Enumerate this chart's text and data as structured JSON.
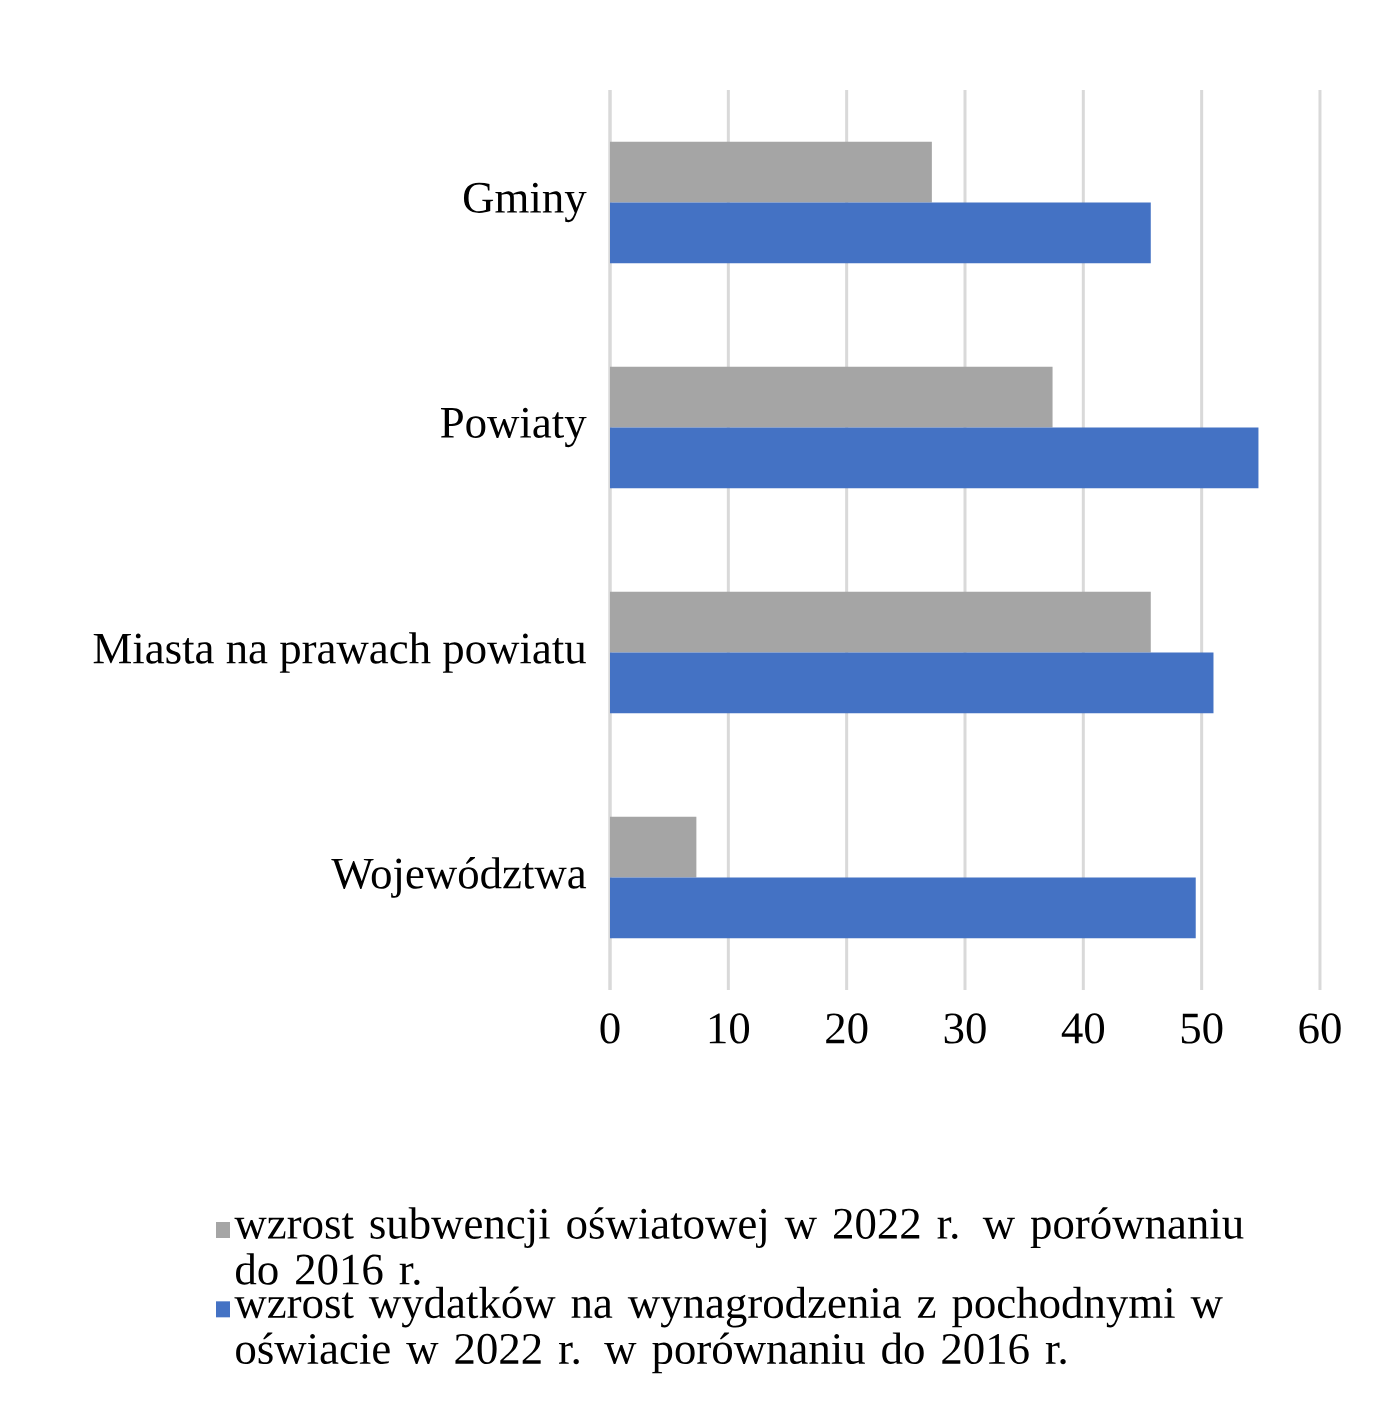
{
  "chart_data": {
    "type": "bar",
    "orientation": "horizontal",
    "categories": [
      "Gminy",
      "Powiaty",
      "Miasta na prawach powiatu",
      "Województwa"
    ],
    "series": [
      {
        "name": "wzrost subwencji oświatowej w 2022 r. w porównaniu do 2016 r.",
        "color": "#a5a5a5",
        "values": [
          27.2,
          37.4,
          45.7,
          7.3
        ]
      },
      {
        "name": "wzrost wydatków na wynagrodzenia z pochodnymi w oświacie w 2022 r. w porównaniu do 2016 r.",
        "color": "#4472c4",
        "values": [
          45.7,
          54.8,
          51.0,
          49.5
        ]
      }
    ],
    "xlim": [
      0,
      60
    ],
    "xticks": [
      0,
      10,
      20,
      30,
      40,
      50,
      60
    ],
    "grid": "x",
    "legend": "bottom"
  }
}
